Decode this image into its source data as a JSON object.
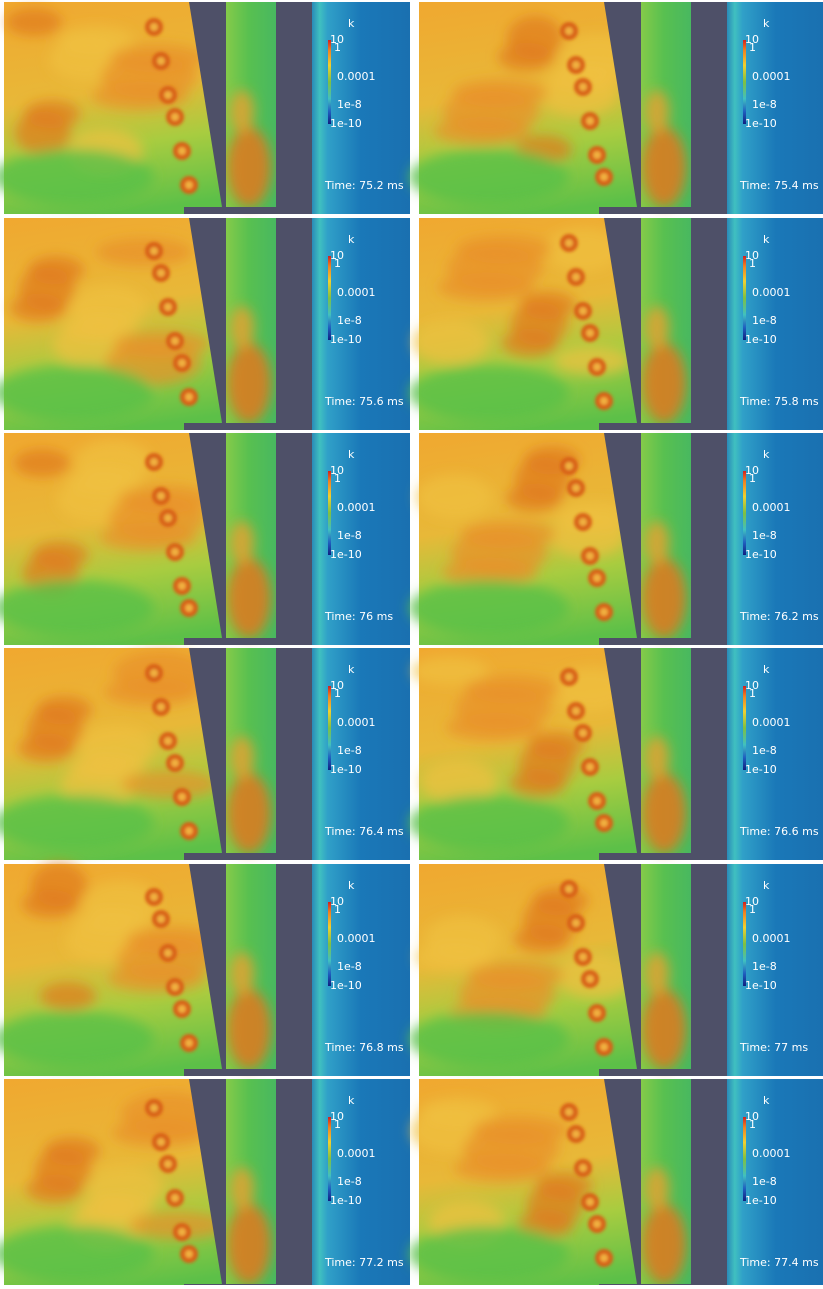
{
  "colorbar": {
    "title": "k",
    "labels": [
      "10",
      "1",
      "0.0001",
      "1e-8",
      "1e-10"
    ]
  },
  "panels": [
    {
      "time": "Time: 75.2 ms"
    },
    {
      "time": "Time: 75.4 ms"
    },
    {
      "time": "Time: 75.6 ms"
    },
    {
      "time": "Time: 75.8 ms"
    },
    {
      "time": "Time: 76 ms"
    },
    {
      "time": "Time: 76.2 ms"
    },
    {
      "time": "Time: 76.4 ms"
    },
    {
      "time": "Time: 76.6 ms"
    },
    {
      "time": "Time: 76.8 ms"
    },
    {
      "time": "Time: 77 ms"
    },
    {
      "time": "Time: 77.2 ms"
    },
    {
      "time": "Time: 77.4 ms"
    }
  ]
}
